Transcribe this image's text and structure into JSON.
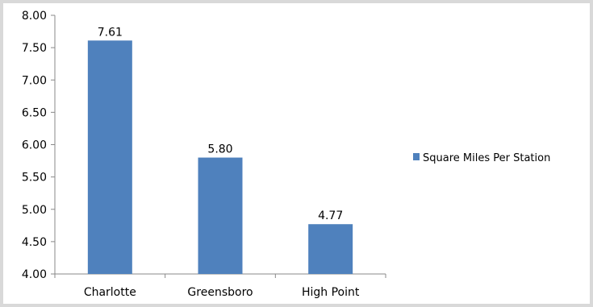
{
  "chart_data": {
    "type": "bar",
    "categories": [
      "Charlotte",
      "Greensboro",
      "High Point"
    ],
    "series": [
      {
        "name": "Square Miles Per Station",
        "values": [
          7.61,
          5.8,
          4.77
        ],
        "color": "#4f81bd"
      }
    ],
    "data_labels": [
      "7.61",
      "5.80",
      "4.77"
    ],
    "y_ticks": [
      "4.00",
      "4.50",
      "5.00",
      "5.50",
      "6.00",
      "6.50",
      "7.00",
      "7.50",
      "8.00"
    ],
    "ylim": [
      4.0,
      8.0
    ],
    "legend_position": "right",
    "grid": false
  }
}
